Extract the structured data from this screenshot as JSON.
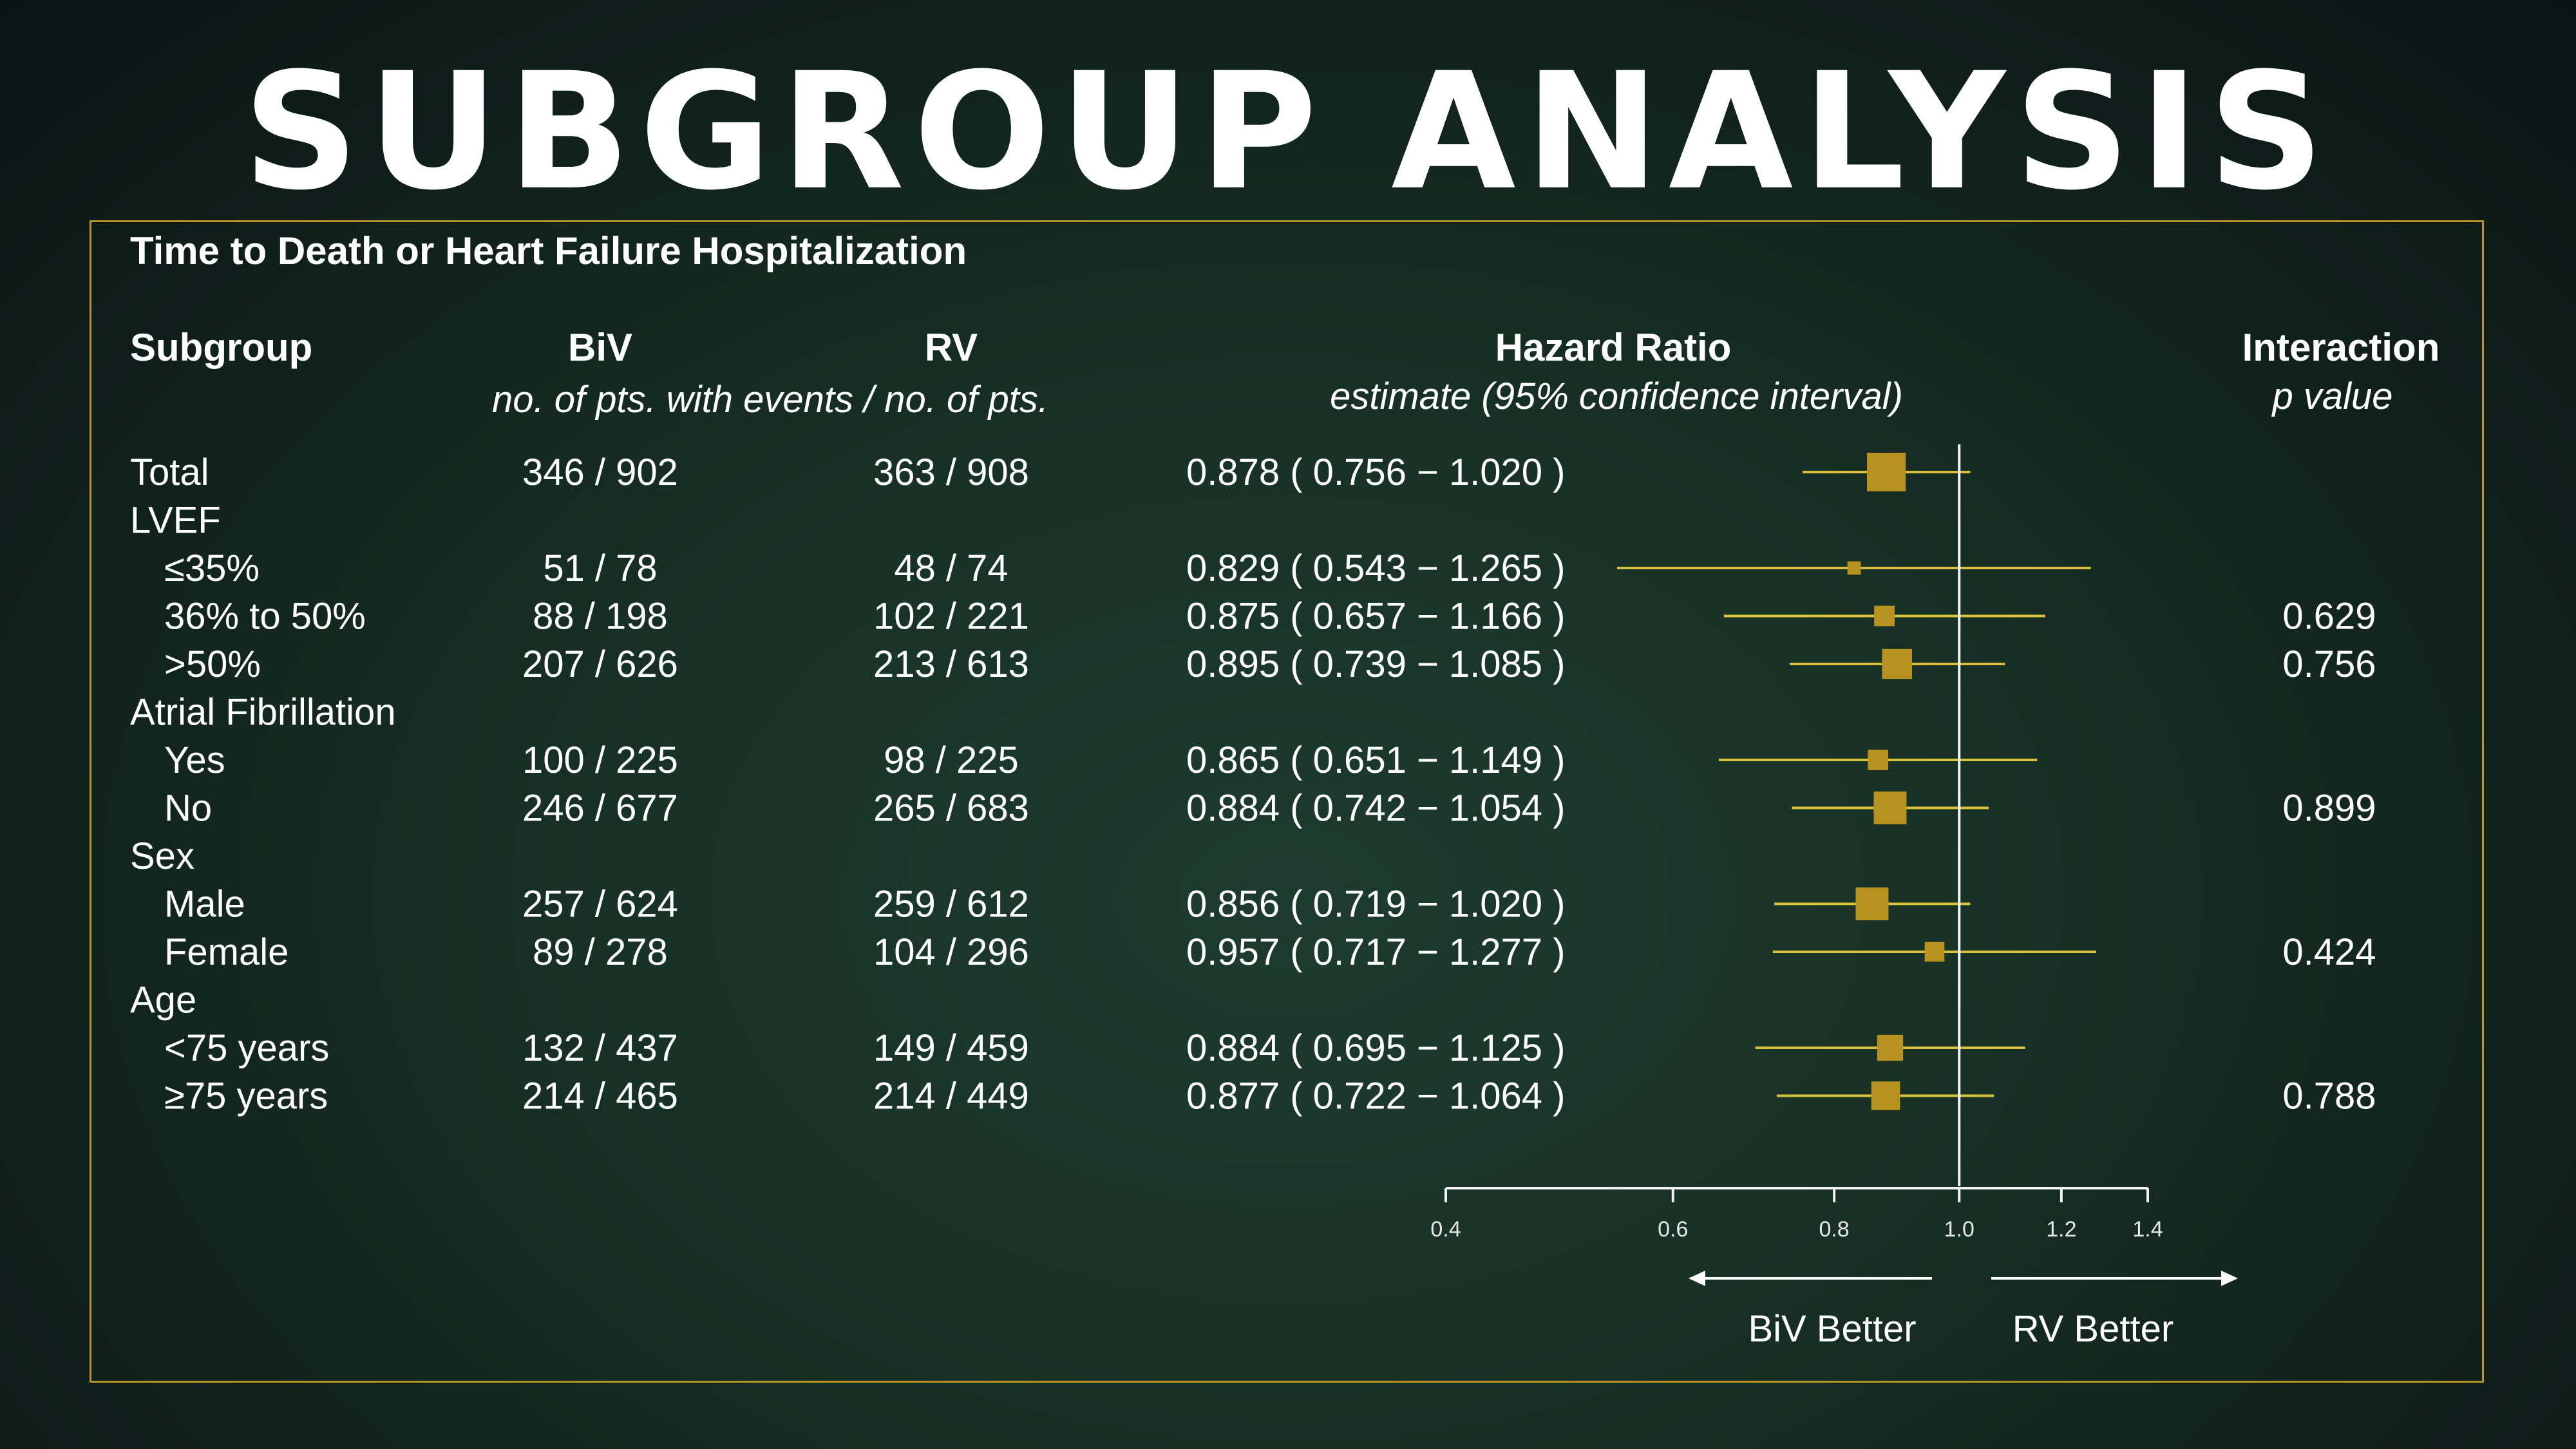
{
  "slide_title": "SUBGROUP ANALYSIS",
  "chart_data": {
    "type": "forest",
    "title": "Time to Death or Heart Failure Hospitalization",
    "columns": {
      "subgroup": "Subgroup",
      "biv": "BiV",
      "rv": "RV",
      "events_note": "no. of pts. with events / no. of pts.",
      "hr": "Hazard Ratio",
      "hr_note": "estimate (95% confidence interval)",
      "interaction": "Interaction",
      "interaction_note": "p value"
    },
    "rows": [
      {
        "label": "Total",
        "indent": false,
        "biv": "346 / 902",
        "rv": "363 / 908",
        "hr_text": "0.878 ( 0.756 − 1.020 )",
        "p": "",
        "est": 0.878,
        "lo": 0.756,
        "hi": 1.02,
        "weight": 1.0
      },
      {
        "label": "LVEF",
        "indent": false,
        "header": true
      },
      {
        "label": "≤35%",
        "indent": true,
        "biv": "51 / 78",
        "rv": "48 / 74",
        "hr_text": "0.829 ( 0.543 − 1.265 )",
        "p": "",
        "est": 0.829,
        "lo": 0.543,
        "hi": 1.265,
        "weight": 0.12
      },
      {
        "label": "36% to 50%",
        "indent": true,
        "biv": "88 / 198",
        "rv": "102 / 221",
        "hr_text": "0.875 ( 0.657 − 1.166 )",
        "p": "0.629",
        "est": 0.875,
        "lo": 0.657,
        "hi": 1.166,
        "weight": 0.28
      },
      {
        "label": ">50%",
        "indent": true,
        "biv": "207 / 626",
        "rv": "213 / 613",
        "hr_text": "0.895 ( 0.739 − 1.085 )",
        "p": "0.756",
        "est": 0.895,
        "lo": 0.739,
        "hi": 1.085,
        "weight": 0.6
      },
      {
        "label": "Atrial Fibrillation",
        "indent": false,
        "header": true
      },
      {
        "label": "Yes",
        "indent": true,
        "biv": "100 / 225",
        "rv": "98 / 225",
        "hr_text": "0.865 ( 0.651 − 1.149 )",
        "p": "",
        "est": 0.865,
        "lo": 0.651,
        "hi": 1.149,
        "weight": 0.28
      },
      {
        "label": "No",
        "indent": true,
        "biv": "246 / 677",
        "rv": "265 / 683",
        "hr_text": "0.884 ( 0.742 − 1.054 )",
        "p": "0.899",
        "est": 0.884,
        "lo": 0.742,
        "hi": 1.054,
        "weight": 0.72
      },
      {
        "label": "Sex",
        "indent": false,
        "header": true
      },
      {
        "label": "Male",
        "indent": true,
        "biv": "257 / 624",
        "rv": "259 / 612",
        "hr_text": "0.856 ( 0.719 − 1.020 )",
        "p": "",
        "est": 0.856,
        "lo": 0.719,
        "hi": 1.02,
        "weight": 0.72
      },
      {
        "label": "Female",
        "indent": true,
        "biv": "89 / 278",
        "rv": "104 / 296",
        "hr_text": "0.957 ( 0.717 − 1.277 )",
        "p": "0.424",
        "est": 0.957,
        "lo": 0.717,
        "hi": 1.277,
        "weight": 0.26
      },
      {
        "label": "Age",
        "indent": false,
        "header": true
      },
      {
        "label": "<75 years",
        "indent": true,
        "biv": "132 / 437",
        "rv": "149 / 459",
        "hr_text": "0.884 ( 0.695 − 1.125 )",
        "p": "",
        "est": 0.884,
        "lo": 0.695,
        "hi": 1.125,
        "weight": 0.45
      },
      {
        "label": "≥75 years",
        "indent": true,
        "biv": "214 / 465",
        "rv": "214 / 449",
        "hr_text": "0.877 ( 0.722 − 1.064 )",
        "p": "0.788",
        "est": 0.877,
        "lo": 0.722,
        "hi": 1.064,
        "weight": 0.55
      }
    ],
    "x_axis": {
      "scale": "log",
      "ticks": [
        0.4,
        0.6,
        0.8,
        1.0,
        1.2,
        1.4
      ],
      "tick_labels": [
        "0.4",
        "0.6",
        "0.8",
        "1.0",
        "1.2",
        "1.4"
      ],
      "xlim": [
        0.4,
        1.4
      ],
      "reference": 1.0
    },
    "direction_labels": {
      "left": "BiV Better",
      "right": "RV Better"
    },
    "colors": {
      "marker": "#b8921f",
      "ci_line": "#d8c23a",
      "text": "#ffffff",
      "frame": "#b8952a"
    },
    "grid": false,
    "legend": "none"
  }
}
